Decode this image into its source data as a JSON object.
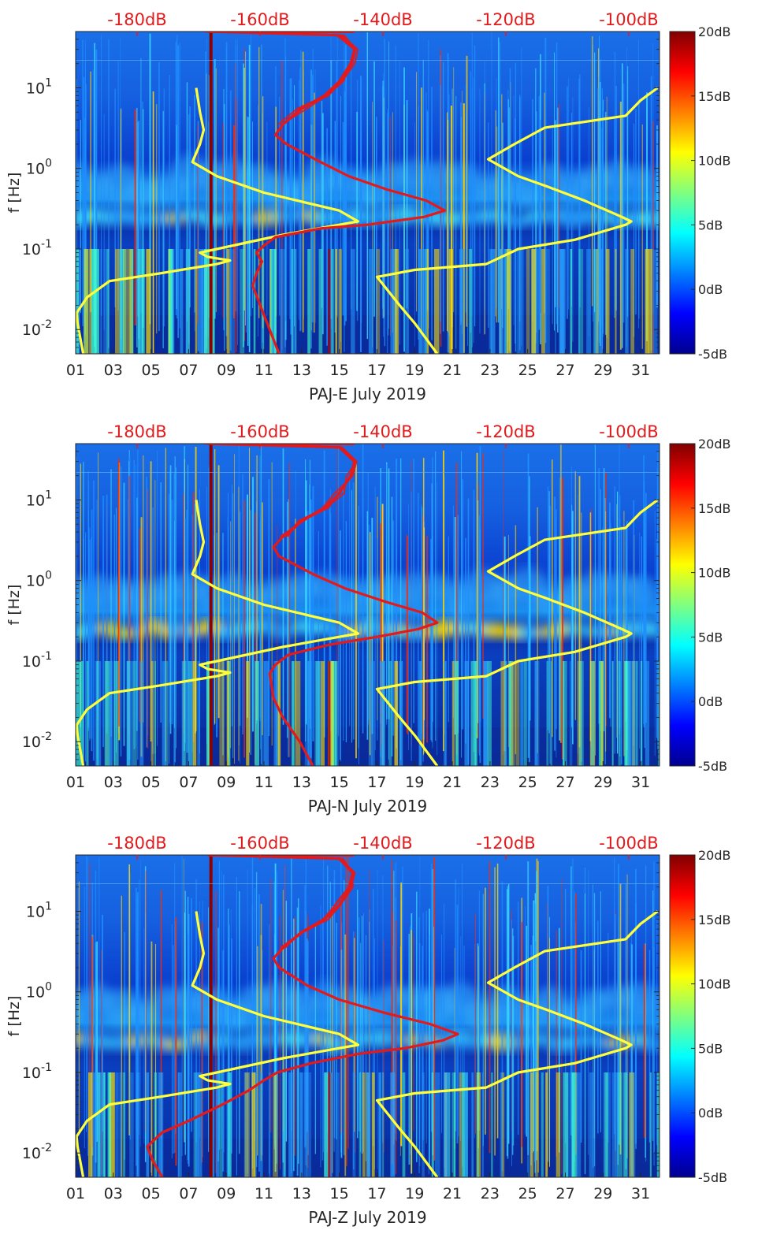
{
  "chart_data": [
    {
      "type": "heatmap",
      "title": "",
      "xlabel": "PAJ-E July 2019",
      "ylabel": "f [Hz]",
      "x_ticks": [
        "01",
        "03",
        "05",
        "07",
        "09",
        "11",
        "13",
        "15",
        "17",
        "19",
        "21",
        "23",
        "25",
        "27",
        "29",
        "31"
      ],
      "x_range_day": [
        1,
        32
      ],
      "y_scale": "log",
      "y_range_hz": [
        0.005,
        50
      ],
      "y_ticks": [
        {
          "value": 0.01,
          "base": "10",
          "exp": "-2"
        },
        {
          "value": 0.1,
          "base": "10",
          "exp": "-1"
        },
        {
          "value": 1,
          "base": "10",
          "exp": "0"
        },
        {
          "value": 10,
          "base": "10",
          "exp": "1"
        }
      ],
      "top_axis_labels": [
        "-180dB",
        "-160dB",
        "-140dB",
        "-120dB",
        "-100dB"
      ],
      "top_axis_range_db": [
        -190,
        -95
      ],
      "colorbar": {
        "colormap": "jet",
        "range_db": [
          -5,
          20
        ],
        "tick_labels": [
          "20dB",
          "15dB",
          "10dB",
          "5dB",
          "0dB",
          "-5dB"
        ],
        "tick_values": [
          20,
          15,
          10,
          5,
          0,
          -5
        ]
      },
      "series": [
        {
          "color": "#ffff3c",
          "points": [
            [
              0.005,
              1.4
            ],
            [
              0.012,
              1.1
            ],
            [
              0.016,
              1.05
            ],
            [
              0.025,
              1.6
            ],
            [
              0.04,
              2.8
            ],
            [
              0.05,
              5.5
            ],
            [
              0.065,
              8.5
            ],
            [
              0.072,
              9.2
            ],
            [
              0.08,
              8.0
            ],
            [
              0.09,
              7.6
            ],
            [
              0.1,
              8.5
            ],
            [
              0.15,
              12.0
            ],
            [
              0.2,
              15.0
            ],
            [
              0.22,
              16.0
            ],
            [
              0.3,
              15.0
            ],
            [
              0.5,
              11.0
            ],
            [
              0.8,
              8.5
            ],
            [
              1.2,
              7.2
            ],
            [
              2.0,
              7.6
            ],
            [
              3.0,
              7.8
            ],
            [
              5.0,
              7.6
            ],
            [
              10.0,
              7.4
            ]
          ]
        },
        {
          "color": "#ffff3c",
          "points": [
            [
              0.005,
              20.2
            ],
            [
              0.012,
              19.0
            ],
            [
              0.02,
              18.2
            ],
            [
              0.03,
              17.6
            ],
            [
              0.045,
              17.0
            ],
            [
              0.055,
              19.0
            ],
            [
              0.065,
              22.8
            ],
            [
              0.1,
              24.5
            ],
            [
              0.13,
              27.5
            ],
            [
              0.2,
              30.2
            ],
            [
              0.22,
              30.5
            ],
            [
              0.25,
              30.0
            ],
            [
              0.4,
              28.0
            ],
            [
              0.6,
              26.0
            ],
            [
              0.8,
              24.5
            ],
            [
              1.3,
              22.9
            ],
            [
              2.0,
              24.3
            ],
            [
              3.2,
              25.9
            ],
            [
              4.5,
              30.2
            ],
            [
              7.0,
              31.0
            ],
            [
              10.0,
              31.9
            ]
          ]
        },
        {
          "color": "#e31a1c",
          "points": [
            [
              0.005,
              11.8
            ],
            [
              0.01,
              11.3
            ],
            [
              0.02,
              10.8
            ],
            [
              0.035,
              10.4
            ],
            [
              0.05,
              10.6
            ],
            [
              0.07,
              10.9
            ],
            [
              0.09,
              10.6
            ],
            [
              0.11,
              11.0
            ],
            [
              0.14,
              11.6
            ],
            [
              0.18,
              14.0
            ],
            [
              0.2,
              16.5
            ],
            [
              0.25,
              19.5
            ],
            [
              0.3,
              20.6
            ],
            [
              0.4,
              19.6
            ],
            [
              0.55,
              17.5
            ],
            [
              0.8,
              15.5
            ],
            [
              1.2,
              14.0
            ],
            [
              2.0,
              12.2
            ],
            [
              2.6,
              11.6
            ],
            [
              3.5,
              12.0
            ],
            [
              5.5,
              13.0
            ],
            [
              8.0,
              14.2
            ],
            [
              12.0,
              15.0
            ],
            [
              20.0,
              15.6
            ],
            [
              30.0,
              15.8
            ],
            [
              45.0,
              15.0
            ],
            [
              50.0,
              8.0
            ]
          ]
        }
      ]
    },
    {
      "type": "heatmap",
      "title": "",
      "xlabel": "PAJ-N July 2019",
      "ylabel": "f [Hz]",
      "x_ticks": [
        "01",
        "03",
        "05",
        "07",
        "09",
        "11",
        "13",
        "15",
        "17",
        "19",
        "21",
        "23",
        "25",
        "27",
        "29",
        "31"
      ],
      "x_range_day": [
        1,
        32
      ],
      "y_scale": "log",
      "y_range_hz": [
        0.005,
        50
      ],
      "y_ticks": [
        {
          "value": 0.01,
          "base": "10",
          "exp": "-2"
        },
        {
          "value": 0.1,
          "base": "10",
          "exp": "-1"
        },
        {
          "value": 1,
          "base": "10",
          "exp": "0"
        },
        {
          "value": 10,
          "base": "10",
          "exp": "1"
        }
      ],
      "top_axis_labels": [
        "-180dB",
        "-160dB",
        "-140dB",
        "-120dB",
        "-100dB"
      ],
      "top_axis_range_db": [
        -190,
        -95
      ],
      "colorbar": {
        "colormap": "jet",
        "range_db": [
          -5,
          20
        ],
        "tick_labels": [
          "20dB",
          "15dB",
          "10dB",
          "5dB",
          "0dB",
          "-5dB"
        ],
        "tick_values": [
          20,
          15,
          10,
          5,
          0,
          -5
        ]
      },
      "series": [
        {
          "color": "#ffff3c",
          "points": [
            [
              0.005,
              1.4
            ],
            [
              0.012,
              1.1
            ],
            [
              0.016,
              1.05
            ],
            [
              0.025,
              1.6
            ],
            [
              0.04,
              2.8
            ],
            [
              0.05,
              5.5
            ],
            [
              0.065,
              8.5
            ],
            [
              0.072,
              9.2
            ],
            [
              0.08,
              8.0
            ],
            [
              0.09,
              7.6
            ],
            [
              0.1,
              8.5
            ],
            [
              0.15,
              12.0
            ],
            [
              0.2,
              15.0
            ],
            [
              0.22,
              16.0
            ],
            [
              0.3,
              15.0
            ],
            [
              0.5,
              11.0
            ],
            [
              0.8,
              8.5
            ],
            [
              1.2,
              7.2
            ],
            [
              2.0,
              7.6
            ],
            [
              3.0,
              7.8
            ],
            [
              5.0,
              7.6
            ],
            [
              10.0,
              7.4
            ]
          ]
        },
        {
          "color": "#ffff3c",
          "points": [
            [
              0.005,
              20.2
            ],
            [
              0.012,
              19.0
            ],
            [
              0.02,
              18.2
            ],
            [
              0.03,
              17.6
            ],
            [
              0.045,
              17.0
            ],
            [
              0.055,
              19.0
            ],
            [
              0.065,
              22.8
            ],
            [
              0.1,
              24.5
            ],
            [
              0.13,
              27.5
            ],
            [
              0.2,
              30.2
            ],
            [
              0.22,
              30.5
            ],
            [
              0.25,
              30.0
            ],
            [
              0.4,
              28.0
            ],
            [
              0.6,
              26.0
            ],
            [
              0.8,
              24.5
            ],
            [
              1.3,
              22.9
            ],
            [
              2.0,
              24.3
            ],
            [
              3.2,
              25.9
            ],
            [
              4.5,
              30.2
            ],
            [
              7.0,
              31.0
            ],
            [
              10.0,
              31.9
            ]
          ]
        },
        {
          "color": "#e31a1c",
          "points": [
            [
              0.005,
              13.6
            ],
            [
              0.01,
              12.9
            ],
            [
              0.02,
              12.0
            ],
            [
              0.035,
              11.5
            ],
            [
              0.05,
              11.4
            ],
            [
              0.07,
              11.3
            ],
            [
              0.09,
              11.6
            ],
            [
              0.12,
              12.3
            ],
            [
              0.16,
              14.5
            ],
            [
              0.2,
              17.0
            ],
            [
              0.25,
              19.2
            ],
            [
              0.3,
              20.2
            ],
            [
              0.4,
              19.4
            ],
            [
              0.55,
              17.4
            ],
            [
              0.8,
              15.3
            ],
            [
              1.2,
              13.6
            ],
            [
              2.0,
              11.8
            ],
            [
              2.6,
              11.5
            ],
            [
              3.5,
              12.0
            ],
            [
              5.5,
              13.0
            ],
            [
              8.0,
              14.2
            ],
            [
              12.0,
              15.0
            ],
            [
              20.0,
              15.6
            ],
            [
              30.0,
              15.8
            ],
            [
              45.0,
              15.0
            ],
            [
              50.0,
              8.0
            ]
          ]
        }
      ]
    },
    {
      "type": "heatmap",
      "title": "",
      "xlabel": "PAJ-Z July 2019",
      "ylabel": "f [Hz]",
      "x_ticks": [
        "01",
        "03",
        "05",
        "07",
        "09",
        "11",
        "13",
        "15",
        "17",
        "19",
        "21",
        "23",
        "25",
        "27",
        "29",
        "31"
      ],
      "x_range_day": [
        1,
        32
      ],
      "y_scale": "log",
      "y_range_hz": [
        0.005,
        50
      ],
      "y_ticks": [
        {
          "value": 0.01,
          "base": "10",
          "exp": "-2"
        },
        {
          "value": 0.1,
          "base": "10",
          "exp": "-1"
        },
        {
          "value": 1,
          "base": "10",
          "exp": "0"
        },
        {
          "value": 10,
          "base": "10",
          "exp": "1"
        }
      ],
      "top_axis_labels": [
        "-180dB",
        "-160dB",
        "-140dB",
        "-120dB",
        "-100dB"
      ],
      "top_axis_range_db": [
        -190,
        -95
      ],
      "colorbar": {
        "colormap": "jet",
        "range_db": [
          -5,
          20
        ],
        "tick_labels": [
          "20dB",
          "15dB",
          "10dB",
          "5dB",
          "0dB",
          "-5dB"
        ],
        "tick_values": [
          20,
          15,
          10,
          5,
          0,
          -5
        ]
      },
      "series": [
        {
          "color": "#ffff3c",
          "points": [
            [
              0.005,
              1.4
            ],
            [
              0.012,
              1.1
            ],
            [
              0.016,
              1.05
            ],
            [
              0.025,
              1.6
            ],
            [
              0.04,
              2.8
            ],
            [
              0.05,
              5.5
            ],
            [
              0.065,
              8.5
            ],
            [
              0.072,
              9.2
            ],
            [
              0.08,
              8.0
            ],
            [
              0.09,
              7.6
            ],
            [
              0.1,
              8.5
            ],
            [
              0.15,
              12.0
            ],
            [
              0.2,
              15.0
            ],
            [
              0.22,
              16.0
            ],
            [
              0.3,
              15.0
            ],
            [
              0.5,
              11.0
            ],
            [
              0.8,
              8.5
            ],
            [
              1.2,
              7.2
            ],
            [
              2.0,
              7.6
            ],
            [
              3.0,
              7.8
            ],
            [
              5.0,
              7.6
            ],
            [
              10.0,
              7.4
            ]
          ]
        },
        {
          "color": "#ffff3c",
          "points": [
            [
              0.005,
              20.2
            ],
            [
              0.012,
              19.0
            ],
            [
              0.02,
              18.2
            ],
            [
              0.03,
              17.6
            ],
            [
              0.045,
              17.0
            ],
            [
              0.055,
              19.0
            ],
            [
              0.065,
              22.8
            ],
            [
              0.1,
              24.5
            ],
            [
              0.13,
              27.5
            ],
            [
              0.2,
              30.2
            ],
            [
              0.22,
              30.5
            ],
            [
              0.25,
              30.0
            ],
            [
              0.4,
              28.0
            ],
            [
              0.6,
              26.0
            ],
            [
              0.8,
              24.5
            ],
            [
              1.3,
              22.9
            ],
            [
              2.0,
              24.3
            ],
            [
              3.2,
              25.9
            ],
            [
              4.5,
              30.2
            ],
            [
              7.0,
              31.0
            ],
            [
              10.0,
              31.9
            ]
          ]
        },
        {
          "color": "#e31a1c",
          "points": [
            [
              0.005,
              5.6
            ],
            [
              0.008,
              5.1
            ],
            [
              0.012,
              4.8
            ],
            [
              0.018,
              5.6
            ],
            [
              0.025,
              7.0
            ],
            [
              0.04,
              8.8
            ],
            [
              0.06,
              10.2
            ],
            [
              0.08,
              11.0
            ],
            [
              0.1,
              11.7
            ],
            [
              0.13,
              13.5
            ],
            [
              0.17,
              16.0
            ],
            [
              0.2,
              18.5
            ],
            [
              0.25,
              20.5
            ],
            [
              0.3,
              21.3
            ],
            [
              0.4,
              19.8
            ],
            [
              0.55,
              17.4
            ],
            [
              0.8,
              15.0
            ],
            [
              1.2,
              13.3
            ],
            [
              2.0,
              11.8
            ],
            [
              2.6,
              11.5
            ],
            [
              3.5,
              12.0
            ],
            [
              5.5,
              13.0
            ],
            [
              8.0,
              14.2
            ],
            [
              12.0,
              15.0
            ],
            [
              20.0,
              15.6
            ],
            [
              30.0,
              15.8
            ],
            [
              45.0,
              15.0
            ],
            [
              50.0,
              8.0
            ]
          ]
        }
      ]
    }
  ]
}
